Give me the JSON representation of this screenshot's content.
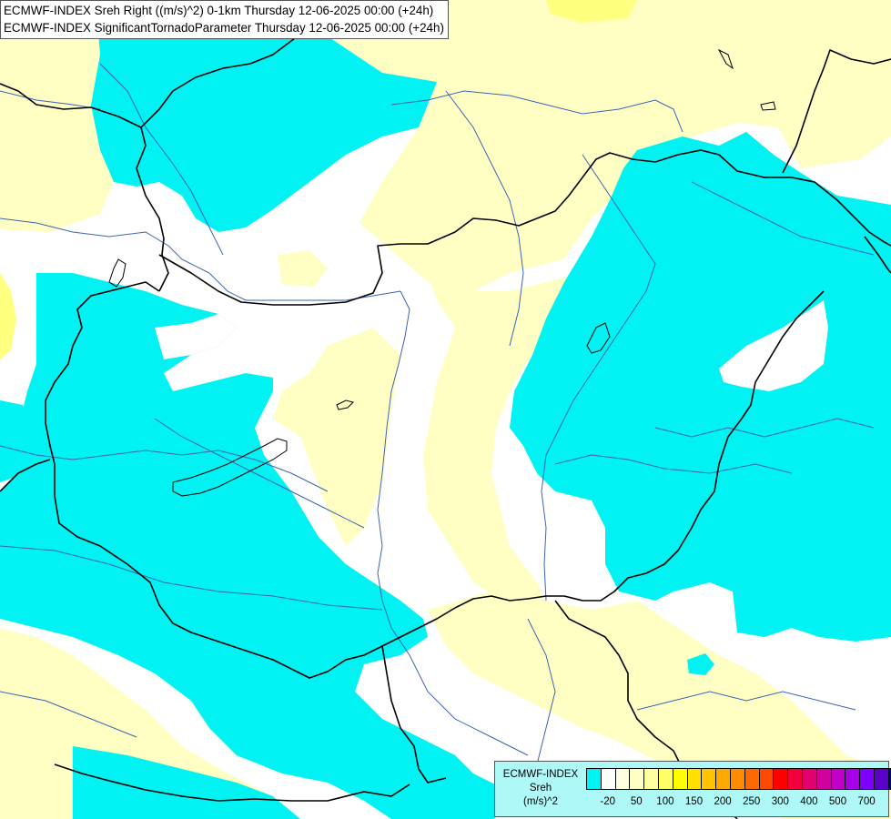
{
  "map": {
    "title_lines": [
      "ECMWF-INDEX Sreh Right ((m/s)^2) 0-1km Thursday 12-06-2025 00:00 (+24h)",
      "ECMWF-INDEX SignificantTornadoParameter Thursday 12-06-2025 00:00 (+24h)"
    ],
    "colors": {
      "cyan_band": "#00f2f2",
      "white_band": "#ffffff",
      "pale_yellow_band": "#ffffc4",
      "yellow_band": "#ffff80",
      "border": "#000000",
      "river": "#3a64b4"
    }
  },
  "legend": {
    "title_line1": "ECMWF-INDEX",
    "title_line2": "Sreh",
    "title_line3": "(m/s)^2",
    "swatch_colors": [
      "#00f2f2",
      "#ffffff",
      "#ffffe0",
      "#ffffc4",
      "#ffff9f",
      "#ffff66",
      "#ffff00",
      "#ffe000",
      "#ffc400",
      "#ffa800",
      "#ff8c00",
      "#ff6a00",
      "#ff4800",
      "#ff0000",
      "#f2003c",
      "#e0006e",
      "#d0009c",
      "#c000c8",
      "#a800e8",
      "#8000ff",
      "#5a00c8",
      "#000090"
    ],
    "tick_labels": [
      "-20",
      "50",
      "100",
      "150",
      "200",
      "250",
      "300",
      "400",
      "500",
      "700"
    ]
  }
}
